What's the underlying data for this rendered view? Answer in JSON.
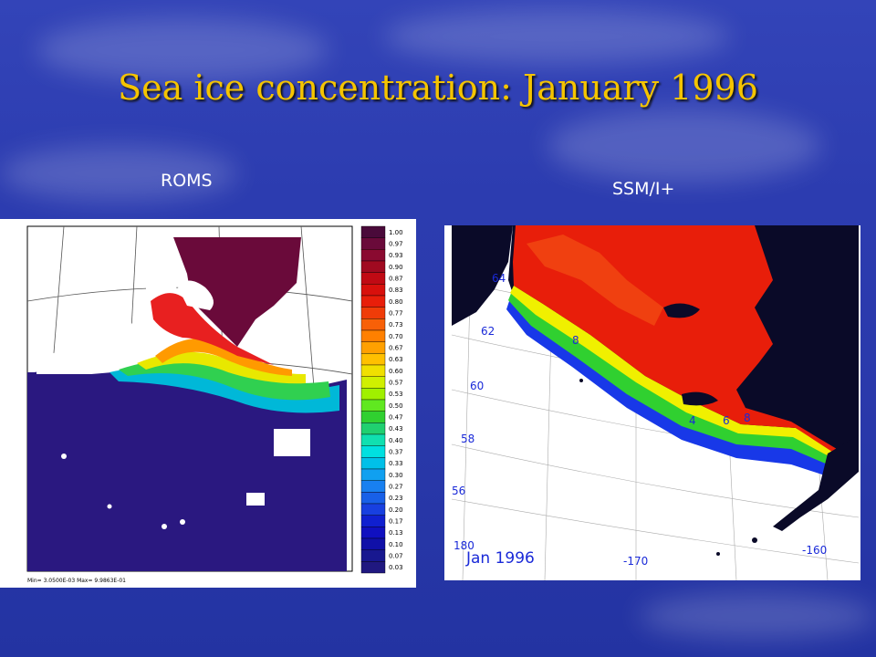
{
  "slide": {
    "title": "Sea ice concentration:  January 1996"
  },
  "left_panel": {
    "label": "ROMS",
    "colorbar_ticks": [
      "1.00",
      "0.97",
      "0.93",
      "0.90",
      "0.87",
      "0.83",
      "0.80",
      "0.77",
      "0.73",
      "0.70",
      "0.67",
      "0.63",
      "0.60",
      "0.57",
      "0.53",
      "0.50",
      "0.47",
      "0.43",
      "0.40",
      "0.37",
      "0.33",
      "0.30",
      "0.27",
      "0.23",
      "0.20",
      "0.17",
      "0.13",
      "0.10",
      "0.07",
      "0.03"
    ],
    "footer": "Min= 3.0500E-03  Max= 9.9863E-01"
  },
  "right_panel": {
    "label": "SSM/I+",
    "date_label": "Jan 1996",
    "lat_labels": [
      "64",
      "62",
      "60",
      "58",
      "56"
    ],
    "lon_labels": [
      "180",
      "-170",
      "-160"
    ],
    "contour_labels": [
      "8",
      "4",
      "6",
      "8"
    ]
  }
}
